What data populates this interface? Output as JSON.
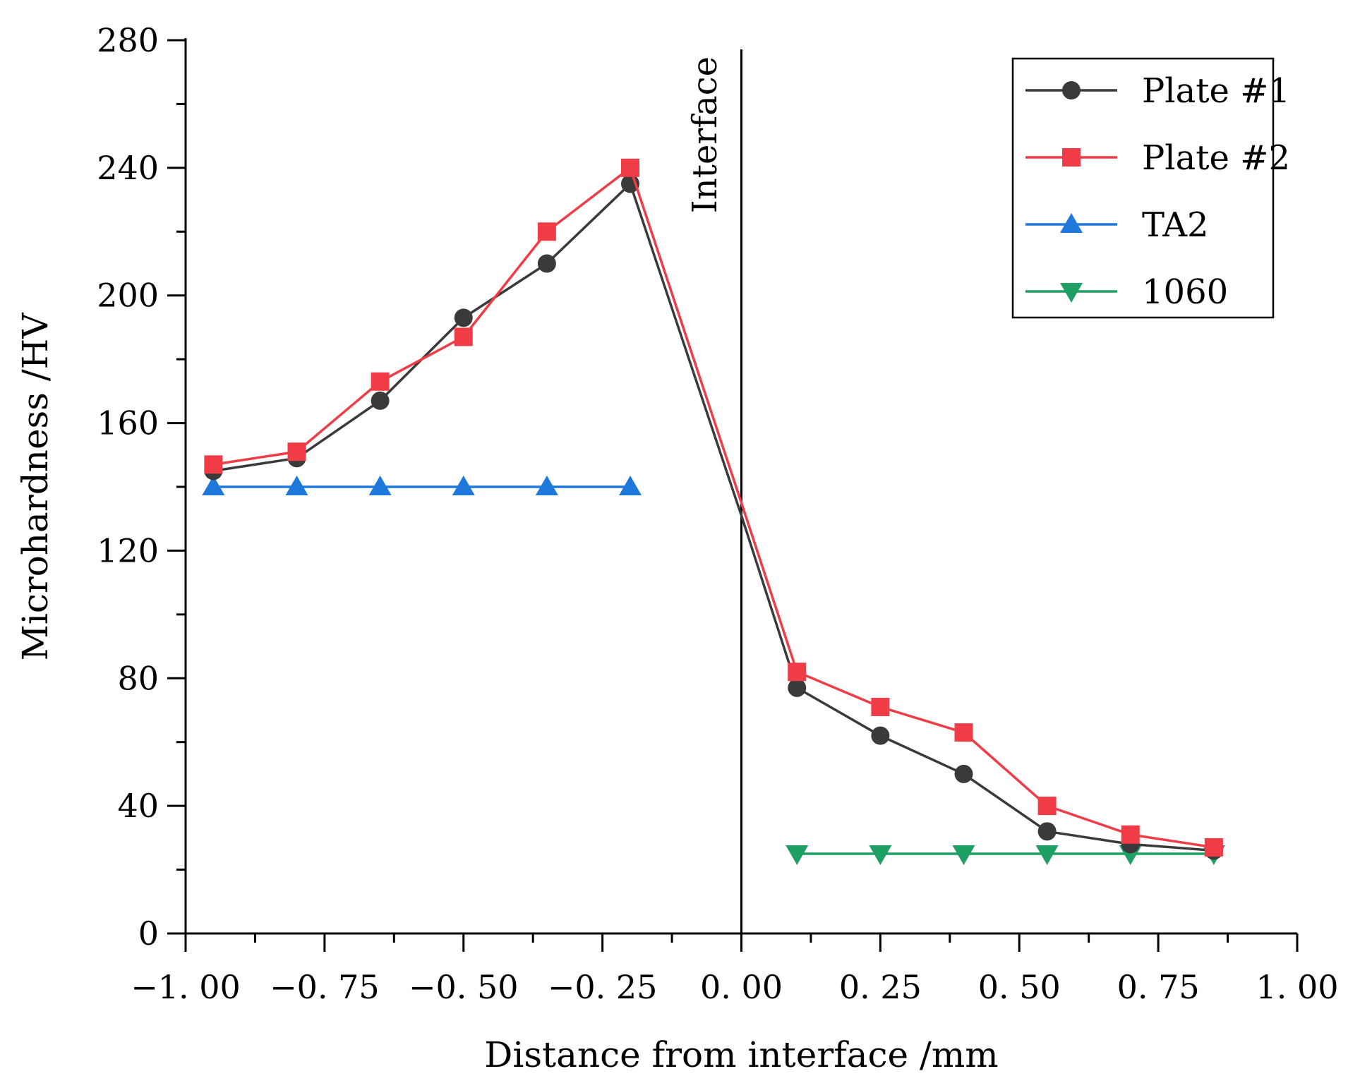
{
  "chart_data": {
    "type": "line",
    "title": "",
    "xlabel": "Distance from interface /mm",
    "ylabel": "Microhardness /HV",
    "xlim": [
      -1.0,
      1.0
    ],
    "ylim": [
      0,
      280
    ],
    "x_ticks": [
      -1.0,
      -0.75,
      -0.5,
      -0.25,
      0.0,
      0.25,
      0.5,
      0.75,
      1.0
    ],
    "x_tick_labels": [
      "−1. 00",
      "−0. 75",
      "−0. 50",
      "−0. 25",
      "0. 00",
      "0. 25",
      "0. 50",
      "0. 75",
      "1. 00"
    ],
    "y_ticks": [
      0,
      40,
      80,
      120,
      160,
      200,
      240,
      280
    ],
    "y_tick_labels": [
      "0",
      "40",
      "80",
      "120",
      "160",
      "200",
      "240",
      "280"
    ],
    "grid": false,
    "legend_position": "top-right",
    "annotation": {
      "label": "Interface",
      "x": 0.0
    },
    "series": [
      {
        "name": "Plate #1",
        "color": "#3a3a3a",
        "marker": "circle",
        "x": [
          -0.95,
          -0.8,
          -0.65,
          -0.5,
          -0.35,
          -0.2,
          0.0,
          0.1,
          0.25,
          0.4,
          0.55,
          0.7,
          0.85
        ],
        "y": [
          145,
          149,
          167,
          193,
          210,
          235,
          131,
          77,
          62,
          50,
          32,
          28,
          26
        ],
        "marker_x": [
          -0.95,
          -0.8,
          -0.65,
          -0.5,
          -0.35,
          -0.2,
          0.1,
          0.25,
          0.4,
          0.55,
          0.7,
          0.85
        ],
        "marker_y": [
          145,
          149,
          167,
          193,
          210,
          235,
          77,
          62,
          50,
          32,
          28,
          26
        ]
      },
      {
        "name": "Plate #2",
        "color": "#f03c46",
        "marker": "square",
        "x": [
          -0.95,
          -0.8,
          -0.65,
          -0.5,
          -0.35,
          -0.2,
          0.0,
          0.1,
          0.25,
          0.4,
          0.55,
          0.7,
          0.85
        ],
        "y": [
          147,
          151,
          173,
          187,
          220,
          240,
          135,
          82,
          71,
          63,
          40,
          31,
          27
        ],
        "marker_x": [
          -0.95,
          -0.8,
          -0.65,
          -0.5,
          -0.35,
          -0.2,
          0.1,
          0.25,
          0.4,
          0.55,
          0.7,
          0.85
        ],
        "marker_y": [
          147,
          151,
          173,
          187,
          220,
          240,
          82,
          71,
          63,
          40,
          31,
          27
        ]
      },
      {
        "name": "TA2",
        "color": "#1e78dc",
        "marker": "triangle-up",
        "x": [
          -0.95,
          -0.8,
          -0.65,
          -0.5,
          -0.35,
          -0.2
        ],
        "y": [
          140,
          140,
          140,
          140,
          140,
          140
        ]
      },
      {
        "name": "1060",
        "color": "#1ea064",
        "marker": "triangle-down",
        "x": [
          0.1,
          0.25,
          0.4,
          0.55,
          0.7,
          0.85
        ],
        "y": [
          25,
          25,
          25,
          25,
          25,
          25
        ]
      }
    ]
  }
}
